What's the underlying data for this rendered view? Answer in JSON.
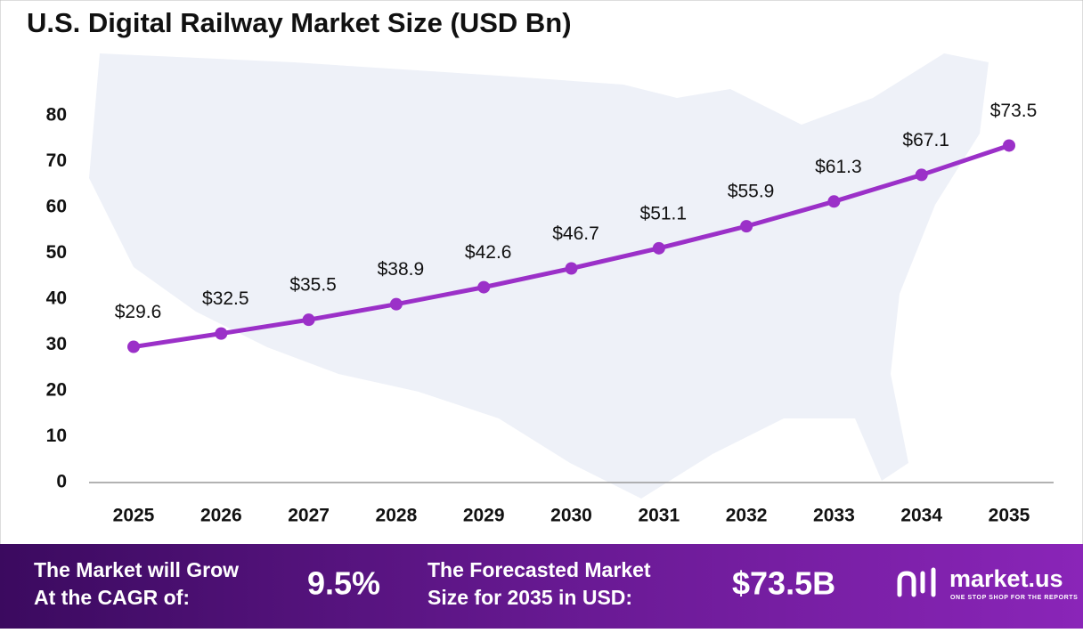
{
  "chart_data": {
    "type": "line",
    "title": "U.S. Digital Railway Market Size (USD Bn)",
    "categories": [
      "2025",
      "2026",
      "2027",
      "2028",
      "2029",
      "2030",
      "2031",
      "2032",
      "2033",
      "2034",
      "2035"
    ],
    "values": [
      29.6,
      32.5,
      35.5,
      38.9,
      42.6,
      46.7,
      51.1,
      55.9,
      61.3,
      67.1,
      73.5
    ],
    "value_labels": [
      "$29.6",
      "$32.5",
      "$35.5",
      "$38.9",
      "$42.6",
      "$46.7",
      "$51.1",
      "$55.9",
      "$61.3",
      "$67.1",
      "$73.5"
    ],
    "color": "#9b30c8",
    "ylim": [
      0,
      80
    ],
    "yticks": [
      0,
      10,
      20,
      30,
      40,
      50,
      60,
      70,
      80
    ],
    "grid": false
  },
  "footer": {
    "cagr_label": [
      "The Market will Grow",
      "At the CAGR of:"
    ],
    "cagr_value": "9.5%",
    "forecast_label": [
      "The Forecasted Market",
      "Size for 2035 in USD:"
    ],
    "forecast_value": "$73.5B",
    "brand": "market.us",
    "tagline": "ONE STOP SHOP FOR THE REPORTS"
  }
}
